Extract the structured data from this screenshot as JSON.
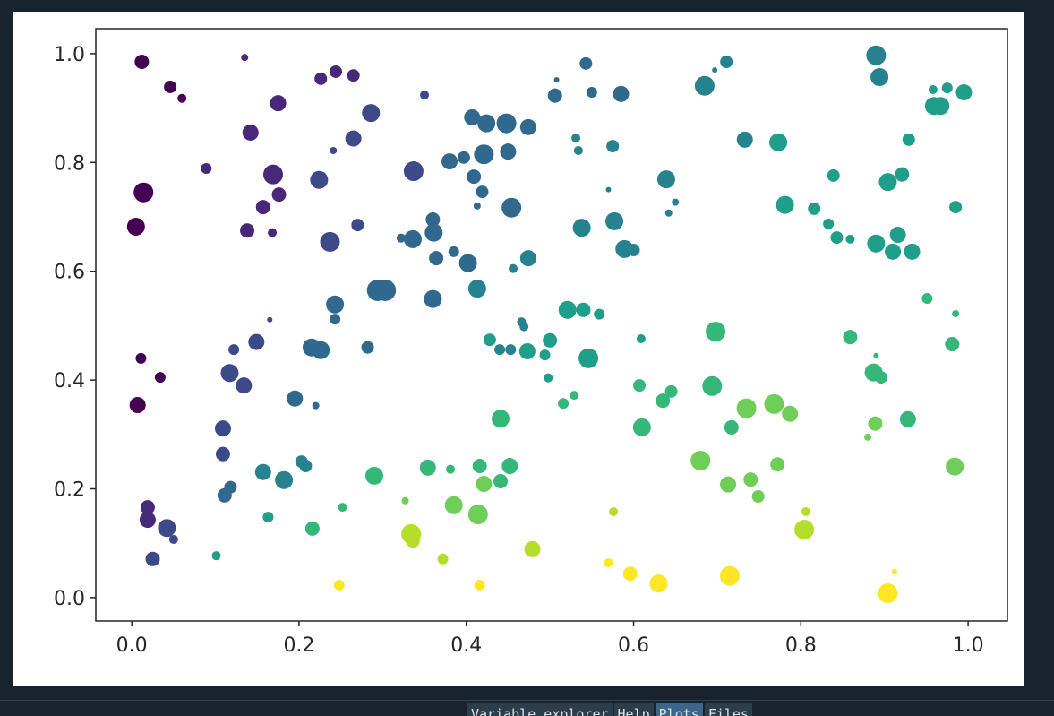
{
  "chart_data": {
    "type": "scatter",
    "x": [
      0.012,
      0.046,
      0.06,
      0.135,
      0.226,
      0.244,
      0.265,
      0.175,
      0.286,
      0.142,
      0.089,
      0.014,
      0.169,
      0.176,
      0.224,
      0.265,
      0.241,
      0.157,
      0.138,
      0.005,
      0.168,
      0.237,
      0.27,
      0.35,
      0.337,
      0.407,
      0.424,
      0.448,
      0.474,
      0.38,
      0.397,
      0.421,
      0.45,
      0.409,
      0.419,
      0.413,
      0.454,
      0.36,
      0.361,
      0.336,
      0.322,
      0.364,
      0.385,
      0.402,
      0.474,
      0.456,
      0.413,
      0.36,
      0.294,
      0.303,
      0.243,
      0.243,
      0.165,
      0.149,
      0.122,
      0.011,
      0.034,
      0.007,
      0.117,
      0.134,
      0.215,
      0.226,
      0.282,
      0.195,
      0.22,
      0.109,
      0.109,
      0.111,
      0.118,
      0.157,
      0.182,
      0.203,
      0.208,
      0.163,
      0.216,
      0.252,
      0.29,
      0.327,
      0.334,
      0.336,
      0.354,
      0.381,
      0.385,
      0.414,
      0.372,
      0.416,
      0.421,
      0.441,
      0.452,
      0.441,
      0.428,
      0.44,
      0.453,
      0.473,
      0.466,
      0.469,
      0.5,
      0.494,
      0.498,
      0.516,
      0.529,
      0.546,
      0.521,
      0.54,
      0.559,
      0.248,
      0.416,
      0.479,
      0.506,
      0.508,
      0.543,
      0.55,
      0.585,
      0.531,
      0.534,
      0.575,
      0.538,
      0.57,
      0.577,
      0.589,
      0.6,
      0.685,
      0.697,
      0.711,
      0.639,
      0.642,
      0.65,
      0.733,
      0.773,
      0.781,
      0.816,
      0.839,
      0.833,
      0.843,
      0.859,
      0.89,
      0.894,
      0.929,
      0.921,
      0.904,
      0.89,
      0.916,
      0.91,
      0.933,
      0.959,
      0.967,
      0.958,
      0.975,
      0.995,
      0.985,
      0.951,
      0.985,
      0.981,
      0.859,
      0.89,
      0.887,
      0.896,
      0.889,
      0.88,
      0.928,
      0.984,
      0.698,
      0.609,
      0.607,
      0.635,
      0.645,
      0.694,
      0.717,
      0.735,
      0.768,
      0.787,
      0.61,
      0.68,
      0.713,
      0.74,
      0.749,
      0.772,
      0.806,
      0.804,
      0.576,
      0.57,
      0.596,
      0.63,
      0.715,
      0.912,
      0.904,
      0.019,
      0.019,
      0.025,
      0.042,
      0.05,
      0.101
    ],
    "values": [
      0.985,
      0.939,
      0.918,
      0.993,
      0.954,
      0.967,
      0.96,
      0.909,
      0.891,
      0.855,
      0.789,
      0.745,
      0.778,
      0.741,
      0.768,
      0.844,
      0.822,
      0.718,
      0.675,
      0.682,
      0.671,
      0.654,
      0.685,
      0.924,
      0.784,
      0.883,
      0.872,
      0.872,
      0.865,
      0.802,
      0.809,
      0.815,
      0.82,
      0.774,
      0.746,
      0.72,
      0.717,
      0.695,
      0.671,
      0.659,
      0.661,
      0.624,
      0.636,
      0.615,
      0.624,
      0.605,
      0.568,
      0.549,
      0.565,
      0.565,
      0.539,
      0.512,
      0.511,
      0.47,
      0.456,
      0.44,
      0.405,
      0.354,
      0.413,
      0.39,
      0.46,
      0.455,
      0.46,
      0.366,
      0.353,
      0.311,
      0.264,
      0.188,
      0.203,
      0.231,
      0.216,
      0.25,
      0.242,
      0.148,
      0.127,
      0.166,
      0.224,
      0.178,
      0.117,
      0.105,
      0.239,
      0.236,
      0.17,
      0.153,
      0.071,
      0.242,
      0.209,
      0.214,
      0.242,
      0.329,
      0.474,
      0.456,
      0.456,
      0.453,
      0.507,
      0.498,
      0.473,
      0.446,
      0.404,
      0.357,
      0.372,
      0.44,
      0.529,
      0.529,
      0.521,
      0.023,
      0.023,
      0.089,
      0.923,
      0.952,
      0.982,
      0.929,
      0.926,
      0.845,
      0.822,
      0.83,
      0.68,
      0.75,
      0.692,
      0.641,
      0.639,
      0.941,
      0.97,
      0.985,
      0.769,
      0.707,
      0.727,
      0.842,
      0.837,
      0.722,
      0.715,
      0.776,
      0.687,
      0.662,
      0.659,
      0.997,
      0.957,
      0.842,
      0.778,
      0.764,
      0.651,
      0.667,
      0.636,
      0.636,
      0.904,
      0.904,
      0.934,
      0.937,
      0.929,
      0.718,
      0.55,
      0.522,
      0.466,
      0.479,
      0.445,
      0.414,
      0.405,
      0.32,
      0.295,
      0.328,
      0.241,
      0.489,
      0.476,
      0.39,
      0.362,
      0.379,
      0.389,
      0.313,
      0.348,
      0.356,
      0.338,
      0.313,
      0.252,
      0.208,
      0.217,
      0.186,
      0.245,
      0.158,
      0.125,
      0.158,
      0.064,
      0.044,
      0.026,
      0.04,
      0.048,
      0.008,
      0.166,
      0.143,
      0.071,
      0.128,
      0.107,
      0.077
    ],
    "sizes": [
      64,
      49,
      25,
      16,
      49,
      49,
      49,
      81,
      100,
      81,
      36,
      121,
      121,
      64,
      100,
      81,
      16,
      64,
      64,
      100,
      25,
      121,
      49,
      25,
      121,
      81,
      100,
      121,
      81,
      81,
      49,
      121,
      81,
      64,
      49,
      16,
      121,
      64,
      100,
      100,
      25,
      64,
      36,
      100,
      81,
      25,
      100,
      100,
      144,
      144,
      100,
      36,
      9,
      81,
      36,
      36,
      36,
      81,
      100,
      81,
      100,
      100,
      49,
      81,
      16,
      81,
      64,
      64,
      49,
      81,
      100,
      49,
      49,
      36,
      64,
      25,
      100,
      16,
      121,
      64,
      81,
      25,
      100,
      121,
      36,
      64,
      81,
      64,
      81,
      100,
      49,
      36,
      36,
      81,
      25,
      25,
      64,
      36,
      25,
      36,
      25,
      121,
      100,
      64,
      36,
      36,
      36,
      81,
      64,
      9,
      49,
      36,
      81,
      25,
      25,
      49,
      100,
      9,
      100,
      100,
      49,
      121,
      9,
      49,
      100,
      16,
      16,
      81,
      100,
      100,
      49,
      49,
      36,
      49,
      25,
      121,
      100,
      49,
      64,
      100,
      100,
      81,
      81,
      81,
      100,
      100,
      25,
      36,
      81,
      49,
      36,
      16,
      64,
      64,
      9,
      100,
      49,
      64,
      16,
      81,
      100,
      121,
      25,
      49,
      64,
      49,
      121,
      64,
      121,
      121,
      81,
      100,
      121,
      81,
      64,
      49,
      64,
      25,
      121,
      25,
      25,
      64,
      100,
      121,
      9,
      121,
      64,
      81,
      64,
      100,
      25,
      25
    ],
    "colors": [
      "#440154",
      "#440154",
      "#440154",
      "#482878",
      "#482878",
      "#482878",
      "#482878",
      "#482878",
      "#3e4989",
      "#482878",
      "#482878",
      "#440154",
      "#482878",
      "#482878",
      "#3e4989",
      "#3e4989",
      "#3e4989",
      "#482878",
      "#482878",
      "#440154",
      "#482878",
      "#3e4989",
      "#3e4989",
      "#3e4989",
      "#3e4989",
      "#31688e",
      "#31688e",
      "#31688e",
      "#31688e",
      "#31688e",
      "#31688e",
      "#31688e",
      "#31688e",
      "#31688e",
      "#31688e",
      "#31688e",
      "#31688e",
      "#31688e",
      "#31688e",
      "#31688e",
      "#31688e",
      "#31688e",
      "#31688e",
      "#31688e",
      "#26828e",
      "#26828e",
      "#26828e",
      "#31688e",
      "#31688e",
      "#31688e",
      "#31688e",
      "#31688e",
      "#3e4989",
      "#3e4989",
      "#3e4989",
      "#440154",
      "#440154",
      "#440154",
      "#3e4989",
      "#3e4989",
      "#31688e",
      "#31688e",
      "#31688e",
      "#31688e",
      "#31688e",
      "#3e4989",
      "#3e4989",
      "#31688e",
      "#31688e",
      "#26828e",
      "#26828e",
      "#26828e",
      "#26828e",
      "#1f9e89",
      "#35b779",
      "#35b779",
      "#35b779",
      "#6ece58",
      "#b5de2b",
      "#b5de2b",
      "#35b779",
      "#35b779",
      "#6ece58",
      "#6ece58",
      "#b5de2b",
      "#35b779",
      "#6ece58",
      "#35b779",
      "#35b779",
      "#35b779",
      "#1f9e89",
      "#26828e",
      "#26828e",
      "#1f9e89",
      "#26828e",
      "#26828e",
      "#1f9e89",
      "#1f9e89",
      "#1f9e89",
      "#35b779",
      "#35b779",
      "#1f9e89",
      "#1f9e89",
      "#1f9e89",
      "#1f9e89",
      "#fde725",
      "#fde725",
      "#b5de2b",
      "#31688e",
      "#31688e",
      "#31688e",
      "#31688e",
      "#31688e",
      "#26828e",
      "#26828e",
      "#26828e",
      "#26828e",
      "#26828e",
      "#26828e",
      "#26828e",
      "#26828e",
      "#26828e",
      "#26828e",
      "#26828e",
      "#26828e",
      "#26828e",
      "#26828e",
      "#26828e",
      "#1f9e89",
      "#1f9e89",
      "#1f9e89",
      "#1f9e89",
      "#1f9e89",
      "#1f9e89",
      "#1f9e89",
      "#26828e",
      "#26828e",
      "#1f9e89",
      "#1f9e89",
      "#1f9e89",
      "#1f9e89",
      "#1f9e89",
      "#1f9e89",
      "#1f9e89",
      "#1f9e89",
      "#1f9e89",
      "#1f9e89",
      "#1f9e89",
      "#1f9e89",
      "#1f9e89",
      "#35b779",
      "#35b779",
      "#35b779",
      "#35b779",
      "#35b779",
      "#35b779",
      "#35b779",
      "#6ece58",
      "#6ece58",
      "#35b779",
      "#6ece58",
      "#35b779",
      "#1f9e89",
      "#35b779",
      "#35b779",
      "#35b779",
      "#35b779",
      "#35b779",
      "#6ece58",
      "#6ece58",
      "#6ece58",
      "#35b779",
      "#6ece58",
      "#6ece58",
      "#6ece58",
      "#6ece58",
      "#6ece58",
      "#b5de2b",
      "#b5de2b",
      "#b5de2b",
      "#fde725",
      "#fde725",
      "#fde725",
      "#fde725",
      "#fde725",
      "#fde725",
      "#482878",
      "#482878",
      "#3e4989",
      "#3e4989",
      "#3e4989",
      "#1f9e89"
    ],
    "xlim": [
      -0.043,
      1.047
    ],
    "ylim": [
      -0.043,
      1.046
    ],
    "xticks": [
      {
        "value": 0,
        "label": "0.0"
      },
      0.2,
      0.4,
      0.6,
      0.8,
      {
        "value": 1,
        "label": "1.0"
      }
    ],
    "yticks": [
      {
        "value": 0,
        "label": "0.0"
      },
      0.2,
      0.4,
      0.6,
      0.8,
      {
        "value": 1,
        "label": "1.0"
      }
    ],
    "grid": false
  },
  "tabs": [
    "Variable explorer",
    "Help",
    "Plots",
    "Files"
  ]
}
